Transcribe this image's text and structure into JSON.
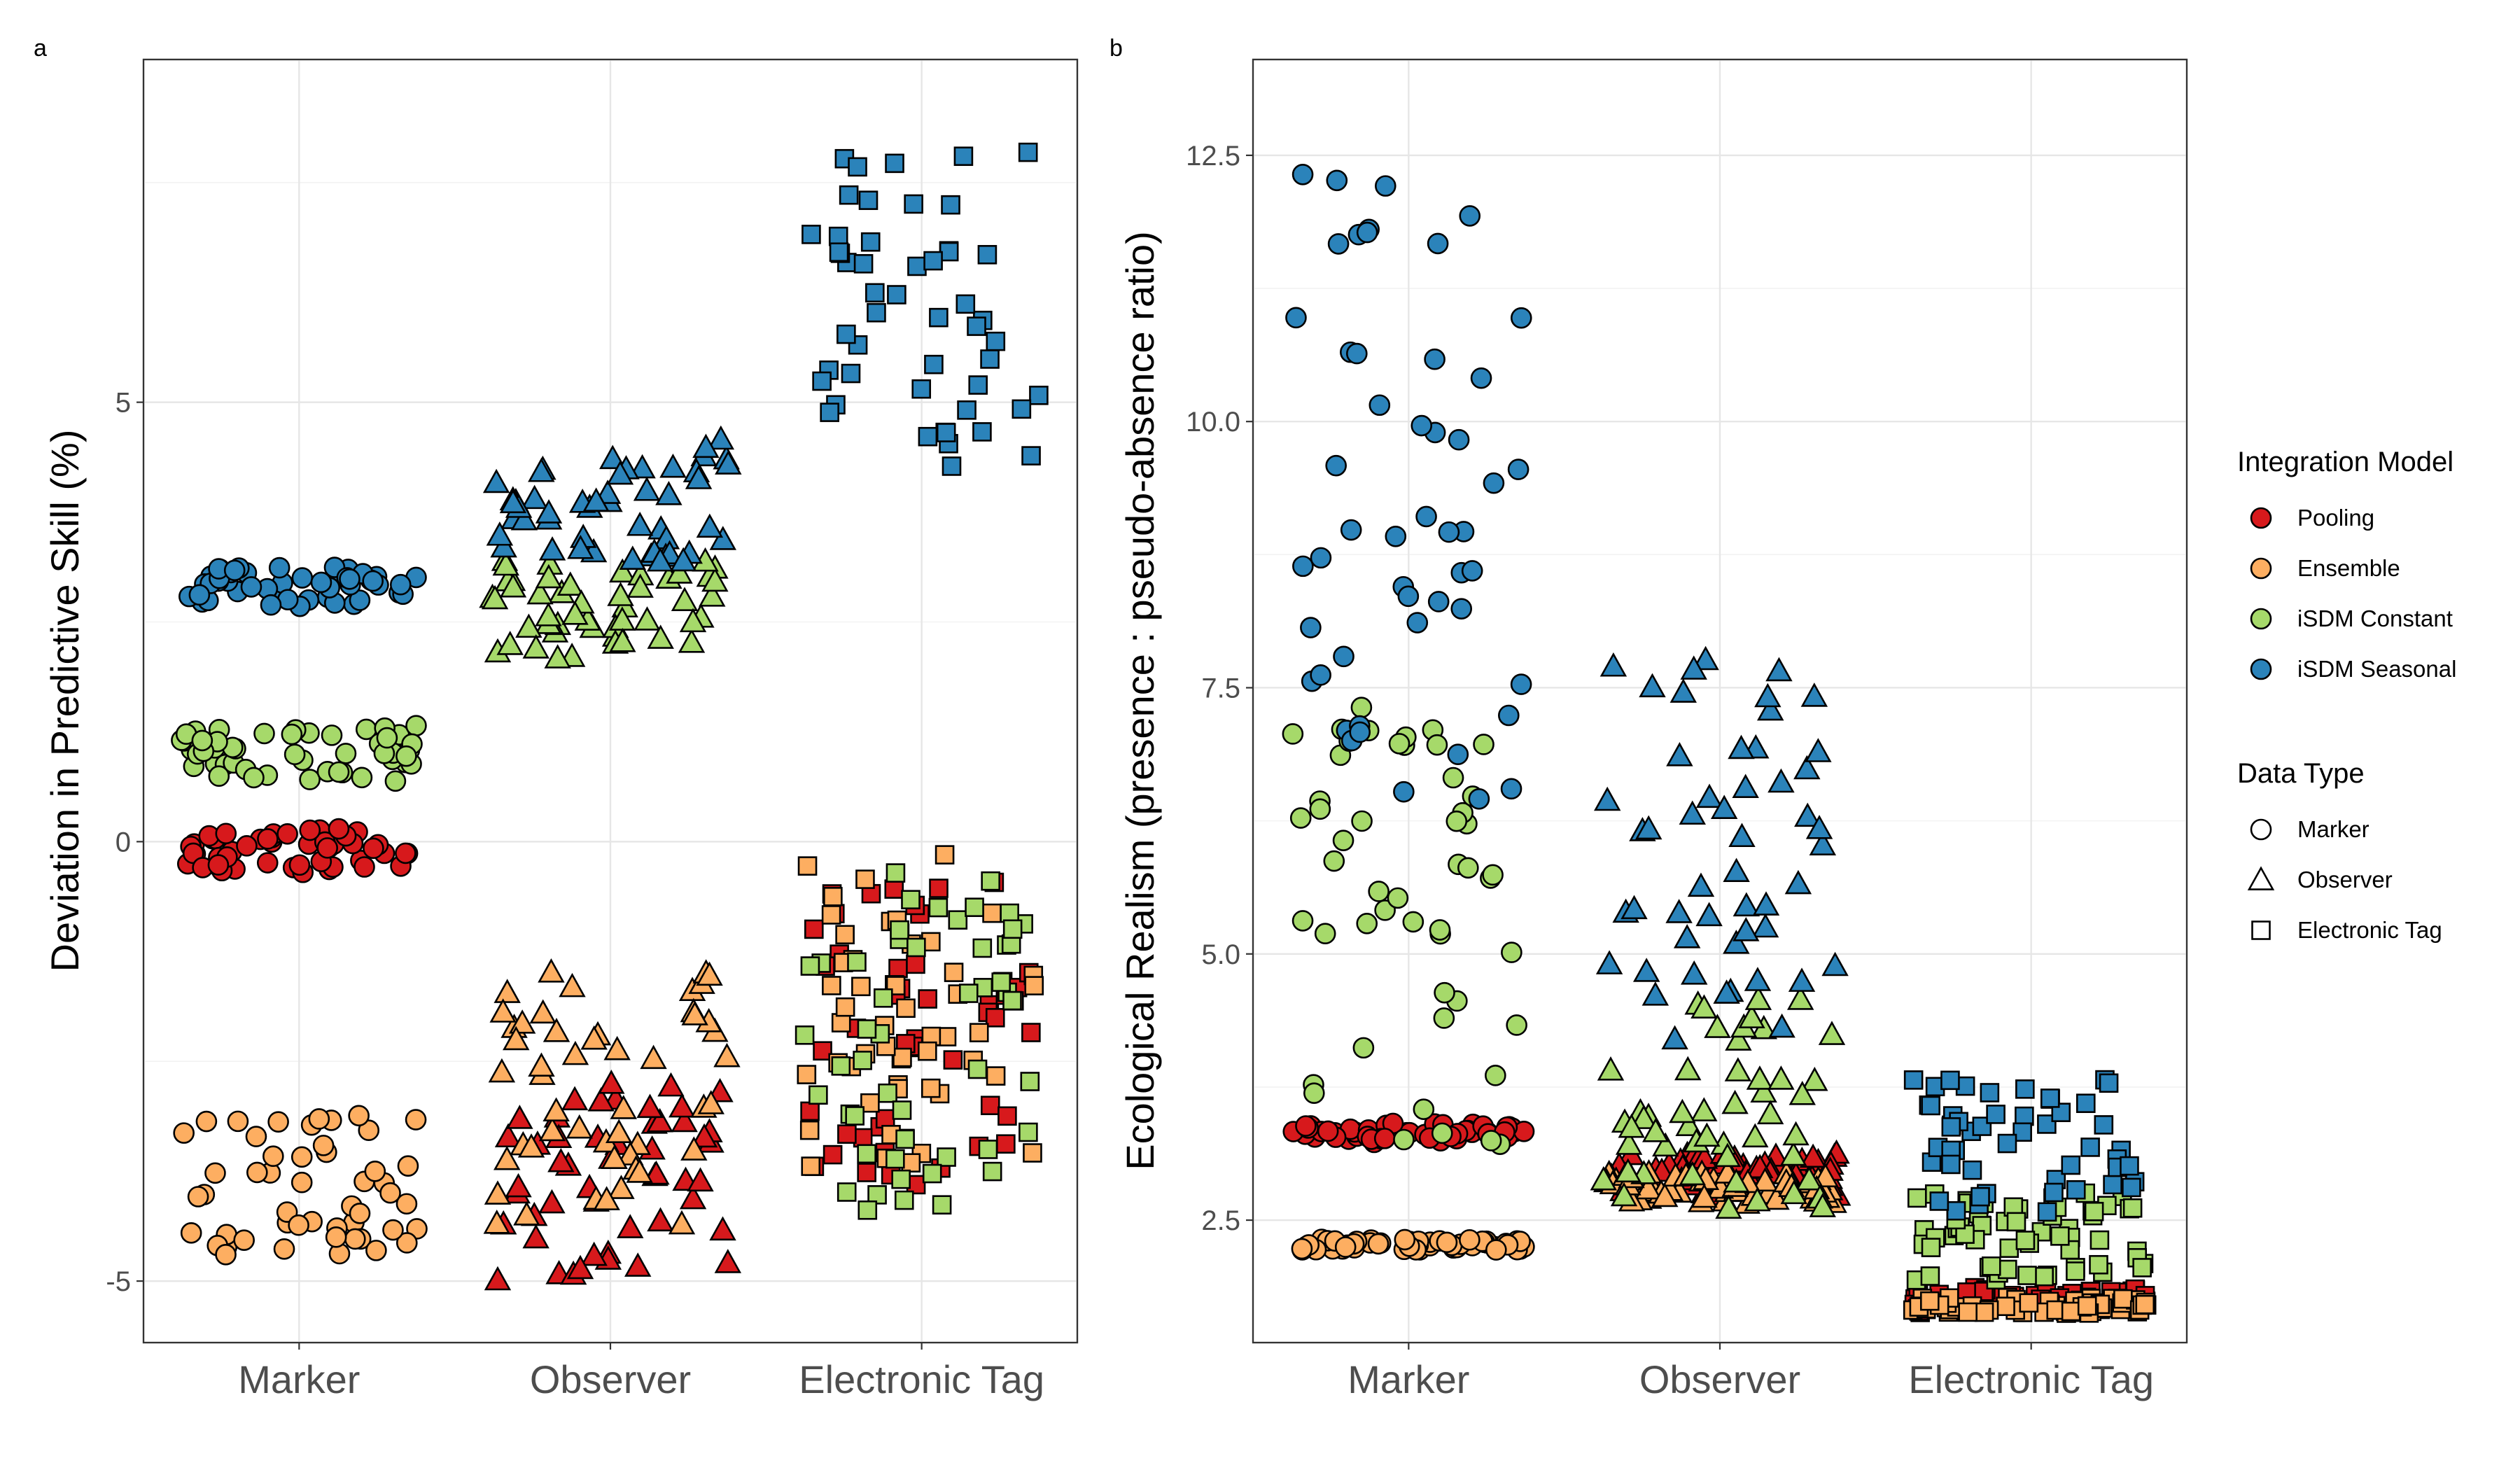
{
  "colors": {
    "Pooling": "#d7191c",
    "Ensemble": "#fdae61",
    "iSDM Constant": "#a6d96a",
    "iSDM Seasonal": "#2b83ba"
  },
  "legend": {
    "model_title": "Integration Model",
    "models": [
      "Pooling",
      "Ensemble",
      "iSDM Constant",
      "iSDM Seasonal"
    ],
    "type_title": "Data Type",
    "types": [
      "Marker",
      "Observer",
      "Electronic Tag"
    ],
    "shapes": {
      "Marker": "circle",
      "Observer": "triangle",
      "Electronic Tag": "square"
    }
  },
  "chart_data": [
    {
      "type": "scatter",
      "panel": "a",
      "ylabel": "Deviation in Predictive Skill (%)",
      "categories": [
        "Marker",
        "Observer",
        "Electronic Tag"
      ],
      "ylim": [
        -5.7,
        8.9
      ],
      "yticks": [
        -5,
        0,
        5
      ],
      "yminor": [
        -2.5,
        2.5,
        7.5
      ],
      "jitter": 0.38,
      "series": [
        {
          "name": "Pooling",
          "values": [
            {
              "x": "Marker",
              "center": -0.1,
              "spread": 0.5,
              "n": 50
            },
            {
              "x": "Observer",
              "center": -3.9,
              "spread": 2.3,
              "n": 50
            },
            {
              "x": "Electronic Tag",
              "center": -2.2,
              "spread": 3.6,
              "n": 50
            }
          ]
        },
        {
          "name": "Ensemble",
          "values": [
            {
              "x": "Marker",
              "center": -3.9,
              "spread": 1.6,
              "n": 50
            },
            {
              "x": "Observer",
              "center": -2.9,
              "spread": 2.9,
              "n": 50
            },
            {
              "x": "Electronic Tag",
              "center": -1.9,
              "spread": 3.6,
              "n": 50
            }
          ]
        },
        {
          "name": "iSDM Constant",
          "values": [
            {
              "x": "Marker",
              "center": 1.0,
              "spread": 0.7,
              "n": 50
            },
            {
              "x": "Observer",
              "center": 2.6,
              "spread": 1.2,
              "n": 50
            },
            {
              "x": "Electronic Tag",
              "center": -2.2,
              "spread": 4.0,
              "n": 50
            }
          ]
        },
        {
          "name": "iSDM Seasonal",
          "values": [
            {
              "x": "Marker",
              "center": 2.9,
              "spread": 0.45,
              "n": 50
            },
            {
              "x": "Observer",
              "center": 3.9,
              "spread": 1.5,
              "n": 50
            },
            {
              "x": "Electronic Tag",
              "center": 6.1,
              "spread": 3.7,
              "n": 50
            }
          ]
        }
      ]
    },
    {
      "type": "scatter",
      "panel": "b",
      "ylabel": "Ecological Realism (presence : pseudo-absence ratio)",
      "categories": [
        "Marker",
        "Observer",
        "Electronic Tag"
      ],
      "ylim": [
        1.35,
        13.4
      ],
      "yticks": [
        2.5,
        5.0,
        7.5,
        10.0,
        12.5
      ],
      "ytick_labels": [
        "2.5",
        "5.0",
        "7.5",
        "10.0",
        "12.5"
      ],
      "yminor": [
        1.25,
        3.75,
        6.25,
        8.75,
        11.25
      ],
      "jitter": 0.38,
      "series": [
        {
          "name": "Pooling",
          "values": [
            {
              "x": "Marker",
              "center": 3.32,
              "spread": 0.18,
              "n": 50
            },
            {
              "x": "Observer",
              "center": 2.93,
              "spread": 0.4,
              "n": 60
            },
            {
              "x": "Electronic Tag",
              "center": 1.75,
              "spread": 0.25,
              "n": 60
            }
          ]
        },
        {
          "name": "Ensemble",
          "values": [
            {
              "x": "Marker",
              "center": 2.27,
              "spread": 0.1,
              "n": 50
            },
            {
              "x": "Observer",
              "center": 2.8,
              "spread": 0.3,
              "n": 60
            },
            {
              "x": "Electronic Tag",
              "center": 1.7,
              "spread": 0.15,
              "n": 60
            }
          ]
        },
        {
          "name": "iSDM Constant",
          "values": [
            {
              "x": "Marker",
              "center": 5.3,
              "spread": 4.2,
              "n": 50
            },
            {
              "x": "Observer",
              "center": 3.6,
              "spread": 2.1,
              "n": 50
            },
            {
              "x": "Electronic Tag",
              "center": 2.35,
              "spread": 0.85,
              "n": 60
            }
          ]
        },
        {
          "name": "iSDM Seasonal",
          "values": [
            {
              "x": "Marker",
              "center": 9.5,
              "spread": 6.2,
              "n": 50
            },
            {
              "x": "Observer",
              "center": 6.0,
              "spread": 3.6,
              "n": 50
            },
            {
              "x": "Electronic Tag",
              "center": 3.2,
              "spread": 1.3,
              "n": 50
            }
          ]
        }
      ]
    }
  ]
}
